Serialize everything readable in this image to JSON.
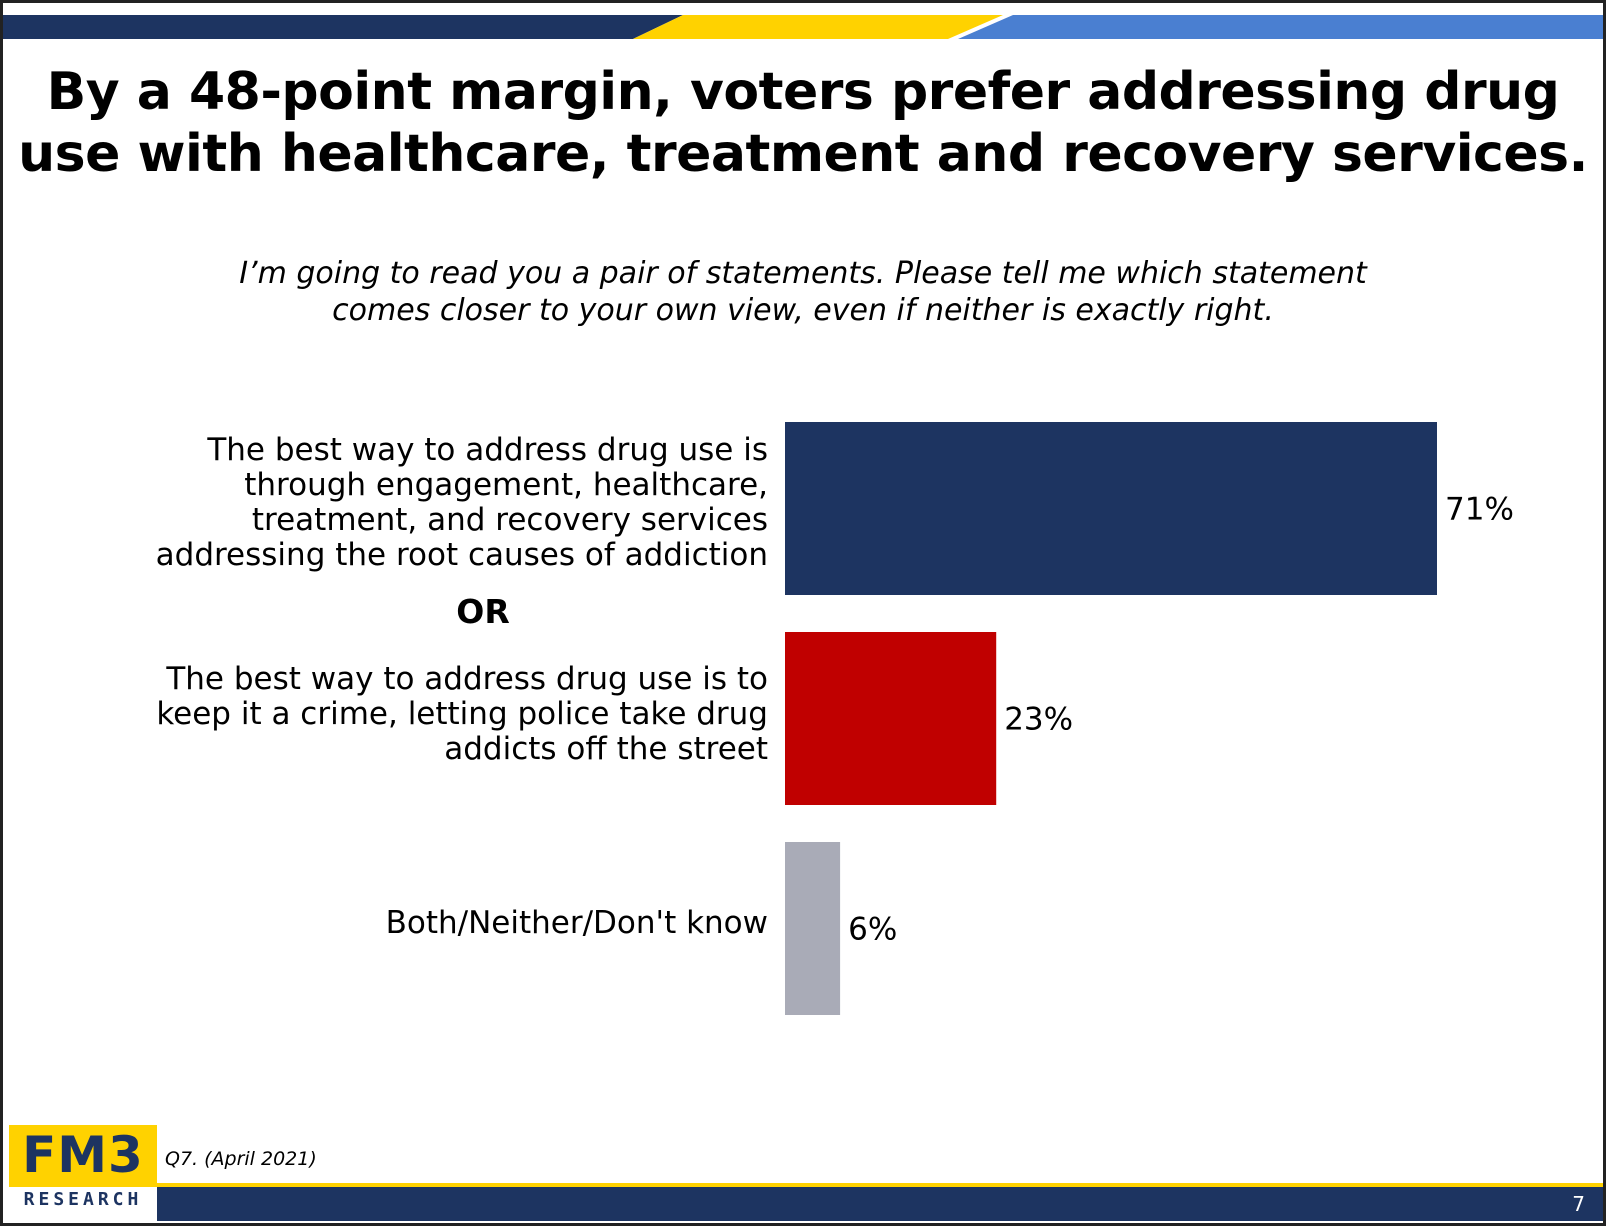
{
  "title": {
    "line1": "By a 48-point margin, voters prefer addressing drug",
    "line2": "use with healthcare, treatment and recovery services."
  },
  "question": {
    "line1": "I’m going to read you a pair of statements. Please tell me which statement",
    "line2": "comes closer to your own view, even if neither is exactly right."
  },
  "separator_label": "OR",
  "chart_data": {
    "type": "bar",
    "orientation": "horizontal",
    "categories": [
      "The best way to address drug use is through engagement, healthcare, treatment, and recovery services addressing the root causes of addiction",
      "The best way to address drug use is to keep it a crime, letting police take drug addicts off the street",
      "Both/Neither/Don't know"
    ],
    "category_lines": [
      [
        "The best way to address drug use is",
        "through engagement, healthcare,",
        "treatment, and recovery services",
        "addressing the root causes of addiction"
      ],
      [
        "The best way to address drug use is to",
        "keep it a crime, letting police take drug",
        "addicts off the street"
      ],
      [
        "Both/Neither/Don't know"
      ]
    ],
    "values": [
      71,
      23,
      6
    ],
    "value_labels": [
      "71%",
      "23%",
      "6%"
    ],
    "colors": [
      "#1d3461",
      "#c00000",
      "#a9abb7"
    ],
    "xlim": [
      0,
      71
    ],
    "grid": false,
    "legend": "none"
  },
  "footer": {
    "logo_main": "FM3",
    "logo_sub": "RESEARCH",
    "source": "Q7. (April 2021)",
    "page_number": "7"
  },
  "colors": {
    "navy": "#1d3461",
    "gold": "#ffd200",
    "blue": "#4a7fd1"
  }
}
